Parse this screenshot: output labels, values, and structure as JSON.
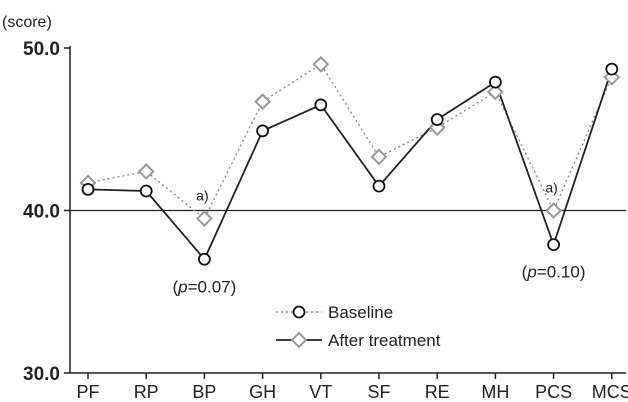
{
  "chart_data": {
    "type": "line",
    "ylabel": "(score)",
    "ylim": [
      30,
      50
    ],
    "yticks": [
      "30.0",
      "40.0",
      "50.0"
    ],
    "categories": [
      "PF",
      "RP",
      "BP",
      "GH",
      "VT",
      "SF",
      "RE",
      "MH",
      "PCS",
      "MCS"
    ],
    "reference_line": 40,
    "series": [
      {
        "name": "Baseline",
        "style": "dotted-circle",
        "values": [
          41.3,
          41.2,
          37.0,
          44.9,
          46.5,
          41.5,
          45.6,
          47.9,
          37.9,
          48.7
        ]
      },
      {
        "name": "After treatment",
        "style": "solid-diamond",
        "values": [
          41.7,
          42.4,
          39.5,
          46.7,
          49.0,
          43.3,
          45.1,
          47.3,
          40.0,
          48.2
        ]
      }
    ],
    "annotations": [
      {
        "category": "BP",
        "superscript": "a)",
        "p_text": "=0.07"
      },
      {
        "category": "PCS",
        "superscript": "a)",
        "p_text": "=0.10"
      }
    ],
    "p_symbol": "p",
    "legend_position": "bottom-center"
  },
  "colors": {
    "baseline_line": "#555555",
    "after_line": "#222222",
    "marker_stroke_baseline": "#111111",
    "marker_stroke_after": "#999999",
    "axis": "#222222"
  }
}
